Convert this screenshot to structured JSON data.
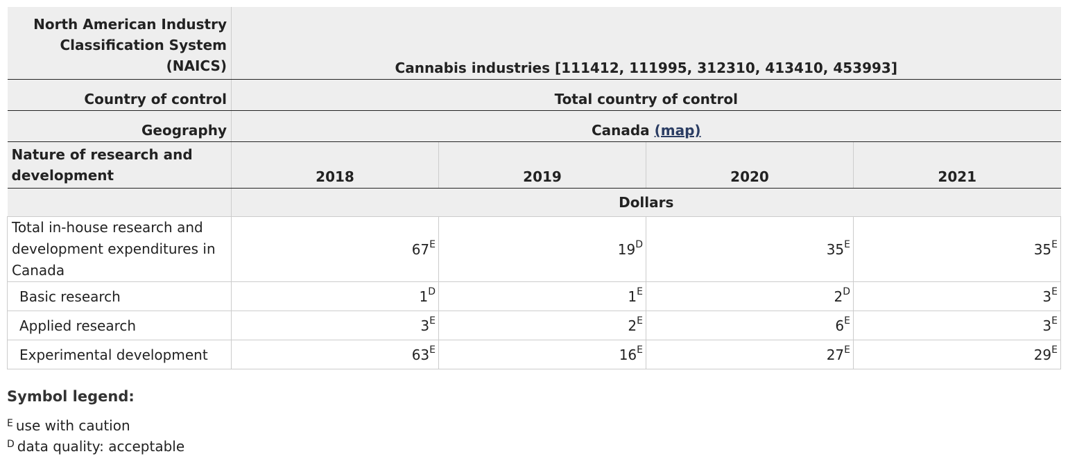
{
  "table": {
    "naics_label": "North American Industry Classification System (NAICS)",
    "naics_value": "Cannabis industries [111412, 111995, 312310, 413410, 453993]",
    "country_label": "Country of control",
    "country_value": "Total country of control",
    "geo_label": "Geography",
    "geo_value": "Canada",
    "geo_link": "(map)",
    "nature_label": "Nature of research and development",
    "years": [
      "2018",
      "2019",
      "2020",
      "2021"
    ],
    "units": "Dollars",
    "rows": [
      {
        "label": "Total in-house research and development expenditures in Canada",
        "cells": [
          {
            "v": "67",
            "s": "E"
          },
          {
            "v": "19",
            "s": "D"
          },
          {
            "v": "35",
            "s": "E"
          },
          {
            "v": "35",
            "s": "E"
          }
        ]
      },
      {
        "label": "Basic research",
        "cells": [
          {
            "v": "1",
            "s": "D"
          },
          {
            "v": "1",
            "s": "E"
          },
          {
            "v": "2",
            "s": "D"
          },
          {
            "v": "3",
            "s": "E"
          }
        ]
      },
      {
        "label": "Applied research",
        "cells": [
          {
            "v": "3",
            "s": "E"
          },
          {
            "v": "2",
            "s": "E"
          },
          {
            "v": "6",
            "s": "E"
          },
          {
            "v": "3",
            "s": "E"
          }
        ]
      },
      {
        "label": "Experimental development",
        "cells": [
          {
            "v": "63",
            "s": "E"
          },
          {
            "v": "16",
            "s": "E"
          },
          {
            "v": "27",
            "s": "E"
          },
          {
            "v": "29",
            "s": "E"
          }
        ]
      }
    ]
  },
  "legend": {
    "title": "Symbol legend:",
    "items": [
      {
        "symbol": "E",
        "text": "use with caution"
      },
      {
        "symbol": "D",
        "text": "data quality: acceptable"
      }
    ]
  }
}
